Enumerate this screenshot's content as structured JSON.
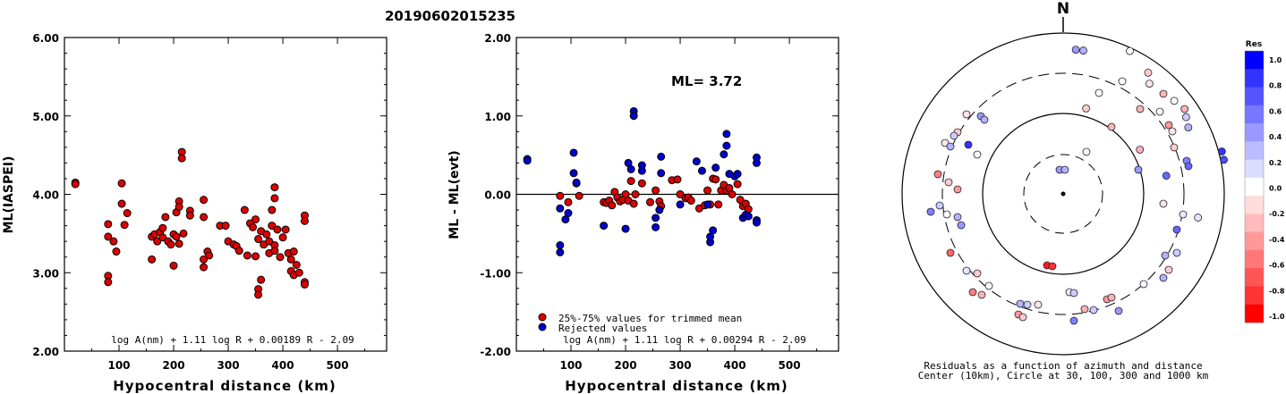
{
  "title": "20190602015235",
  "panel1": {
    "ylabel": "ML(IASPEI)",
    "xlabel": "Hypocentral distance (km)",
    "formula": "log A(nm) + 1.11 log R + 0.00189 R - 2.09",
    "yticks": [
      "2.00",
      "3.00",
      "4.00",
      "5.00",
      "6.00"
    ],
    "xticks": [
      "100",
      "200",
      "300",
      "400",
      "500"
    ]
  },
  "panel2": {
    "ylabel": "ML - ML(evt)",
    "xlabel": "Hypocentral distance (km)",
    "ml_label": "ML= 3.72",
    "legend": [
      "25%-75% values for trimmed mean",
      "Rejected values"
    ],
    "formula": "log A(nm) + 1.11 log R + 0.00294 R - 2.09",
    "yticks": [
      "-2.00",
      "-1.00",
      "0.00",
      "1.00",
      "2.00"
    ],
    "xticks": [
      "100",
      "200",
      "300",
      "400",
      "500"
    ]
  },
  "panel3": {
    "north": "N",
    "caption1": "Residuals as a function of azimuth and distance",
    "caption2": "Center (10km), Circle at 30, 100, 300 and 1000 km"
  },
  "colorbar": {
    "title": "Res",
    "labels": [
      "1.0",
      "0.8",
      "0.6",
      "0.4",
      "0.2",
      "0.0",
      "-0.2",
      "-0.4",
      "-0.6",
      "-0.8",
      "-1.0"
    ],
    "colors": [
      "#0000ff",
      "#3333ff",
      "#5555ff",
      "#7777ff",
      "#9999ff",
      "#bbbbff",
      "#dcdcff",
      "#ffffff",
      "#ffdcdc",
      "#ffbbbb",
      "#ff9999",
      "#ff7777",
      "#ff5555",
      "#ff3333",
      "#ff0000"
    ]
  },
  "colors": {
    "kept": "#dd0000",
    "rejected": "#0000cc"
  },
  "chart_data": [
    {
      "type": "scatter",
      "xlabel": "Hypocentral distance (km)",
      "ylabel": "ML(IASPEI)",
      "xlim": [
        0,
        590
      ],
      "ylim": [
        2.0,
        6.0
      ],
      "points": [
        [
          20,
          4.15
        ],
        [
          20,
          4.13
        ],
        [
          80,
          3.62
        ],
        [
          80,
          3.46
        ],
        [
          80,
          2.96
        ],
        [
          80,
          2.88
        ],
        [
          90,
          3.4
        ],
        [
          95,
          3.27
        ],
        [
          105,
          4.14
        ],
        [
          105,
          3.88
        ],
        [
          110,
          3.61
        ],
        [
          115,
          3.76
        ],
        [
          160,
          3.46
        ],
        [
          160,
          3.17
        ],
        [
          165,
          3.49
        ],
        [
          170,
          3.4
        ],
        [
          175,
          3.52
        ],
        [
          180,
          3.57
        ],
        [
          180,
          3.45
        ],
        [
          185,
          3.71
        ],
        [
          190,
          3.4
        ],
        [
          195,
          3.36
        ],
        [
          200,
          3.49
        ],
        [
          200,
          3.09
        ],
        [
          205,
          3.77
        ],
        [
          205,
          3.46
        ],
        [
          210,
          3.91
        ],
        [
          210,
          3.84
        ],
        [
          210,
          3.37
        ],
        [
          215,
          4.54
        ],
        [
          215,
          4.46
        ],
        [
          218,
          3.5
        ],
        [
          230,
          3.79
        ],
        [
          230,
          3.73
        ],
        [
          255,
          3.93
        ],
        [
          255,
          3.71
        ],
        [
          255,
          3.17
        ],
        [
          255,
          3.07
        ],
        [
          262,
          3.27
        ],
        [
          265,
          3.22
        ],
        [
          285,
          3.6
        ],
        [
          295,
          3.6
        ],
        [
          300,
          3.4
        ],
        [
          310,
          3.36
        ],
        [
          315,
          3.34
        ],
        [
          320,
          3.28
        ],
        [
          330,
          3.8
        ],
        [
          335,
          3.22
        ],
        [
          340,
          3.63
        ],
        [
          345,
          3.58
        ],
        [
          350,
          3.21
        ],
        [
          350,
          3.68
        ],
        [
          355,
          3.43
        ],
        [
          355,
          2.79
        ],
        [
          355,
          2.72
        ],
        [
          360,
          3.53
        ],
        [
          360,
          2.91
        ],
        [
          365,
          3.36
        ],
        [
          370,
          3.49
        ],
        [
          375,
          3.25
        ],
        [
          375,
          3.4
        ],
        [
          380,
          3.6
        ],
        [
          380,
          3.8
        ],
        [
          385,
          4.09
        ],
        [
          385,
          3.95
        ],
        [
          385,
          3.35
        ],
        [
          385,
          3.28
        ],
        [
          390,
          3.55
        ],
        [
          395,
          3.2
        ],
        [
          400,
          3.45
        ],
        [
          405,
          3.55
        ],
        [
          410,
          3.25
        ],
        [
          415,
          3.17
        ],
        [
          415,
          3.02
        ],
        [
          420,
          2.97
        ],
        [
          420,
          3.27
        ],
        [
          425,
          3.1
        ],
        [
          430,
          3.0
        ],
        [
          440,
          3.73
        ],
        [
          440,
          3.66
        ],
        [
          440,
          2.88
        ],
        [
          440,
          2.85
        ]
      ]
    },
    {
      "type": "scatter",
      "xlabel": "Hypocentral distance (km)",
      "ylabel": "ML - ML(evt)",
      "xlim": [
        0,
        590
      ],
      "ylim": [
        -2.0,
        2.0
      ],
      "ml": 3.72,
      "series": [
        {
          "name": "25%-75% values for trimmed mean",
          "points": [
            [
              80,
              -0.02
            ],
            [
              95,
              -0.1
            ],
            [
              110,
              0.14
            ],
            [
              115,
              -0.02
            ],
            [
              160,
              -0.1
            ],
            [
              165,
              -0.11
            ],
            [
              170,
              -0.08
            ],
            [
              175,
              -0.14
            ],
            [
              180,
              0.03
            ],
            [
              185,
              -0.04
            ],
            [
              190,
              -0.09
            ],
            [
              195,
              -0.07
            ],
            [
              200,
              0.0
            ],
            [
              205,
              -0.08
            ],
            [
              210,
              0.17
            ],
            [
              215,
              -0.12
            ],
            [
              218,
              0.0
            ],
            [
              230,
              0.14
            ],
            [
              245,
              -0.1
            ],
            [
              255,
              0.05
            ],
            [
              262,
              -0.09
            ],
            [
              265,
              -0.15
            ],
            [
              285,
              0.18
            ],
            [
              295,
              0.19
            ],
            [
              300,
              0.0
            ],
            [
              310,
              -0.05
            ],
            [
              315,
              -0.04
            ],
            [
              320,
              -0.08
            ],
            [
              335,
              -0.18
            ],
            [
              345,
              -0.14
            ],
            [
              350,
              0.05
            ],
            [
              355,
              -0.13
            ],
            [
              360,
              0.2
            ],
            [
              365,
              0.19
            ],
            [
              370,
              -0.13
            ],
            [
              375,
              0.05
            ],
            [
              380,
              0.12
            ],
            [
              385,
              0.05
            ],
            [
              390,
              0.08
            ],
            [
              395,
              0.0
            ],
            [
              405,
              0.13
            ],
            [
              410,
              -0.07
            ],
            [
              415,
              -0.15
            ],
            [
              420,
              -0.12
            ],
            [
              425,
              -0.19
            ]
          ]
        },
        {
          "name": "Rejected values",
          "points": [
            [
              20,
              0.45
            ],
            [
              20,
              0.43
            ],
            [
              80,
              -0.18
            ],
            [
              80,
              -0.65
            ],
            [
              80,
              -0.74
            ],
            [
              90,
              -0.32
            ],
            [
              95,
              -0.24
            ],
            [
              105,
              0.53
            ],
            [
              105,
              0.27
            ],
            [
              110,
              0.15
            ],
            [
              160,
              -0.4
            ],
            [
              200,
              -0.44
            ],
            [
              205,
              0.4
            ],
            [
              210,
              0.32
            ],
            [
              215,
              1.06
            ],
            [
              215,
              1.0
            ],
            [
              230,
              0.37
            ],
            [
              230,
              0.3
            ],
            [
              255,
              -0.42
            ],
            [
              255,
              -0.3
            ],
            [
              262,
              -0.2
            ],
            [
              265,
              0.48
            ],
            [
              265,
              0.27
            ],
            [
              300,
              -0.13
            ],
            [
              330,
              0.42
            ],
            [
              340,
              0.3
            ],
            [
              350,
              -0.13
            ],
            [
              355,
              -0.61
            ],
            [
              355,
              -0.54
            ],
            [
              360,
              -0.46
            ],
            [
              365,
              0.34
            ],
            [
              380,
              0.51
            ],
            [
              385,
              0.77
            ],
            [
              385,
              0.62
            ],
            [
              390,
              0.26
            ],
            [
              400,
              0.23
            ],
            [
              405,
              0.26
            ],
            [
              415,
              -0.3
            ],
            [
              420,
              -0.26
            ],
            [
              425,
              -0.28
            ],
            [
              440,
              0.47
            ],
            [
              440,
              0.4
            ],
            [
              440,
              -0.33
            ],
            [
              440,
              -0.36
            ]
          ]
        }
      ]
    },
    {
      "type": "scatter",
      "name": "residuals polar",
      "rings": [
        30,
        100,
        300,
        1000
      ],
      "points": [
        {
          "az": 5,
          "r": 0.9,
          "res": 0.4
        },
        {
          "az": 8,
          "r": 0.9,
          "res": 0.3
        },
        {
          "az": 25,
          "r": 0.98,
          "res": 0.0
        },
        {
          "az": 35,
          "r": 0.92,
          "res": -0.2
        },
        {
          "az": 38,
          "r": 0.87,
          "res": -0.1
        },
        {
          "az": 45,
          "r": 0.88,
          "res": -0.3
        },
        {
          "az": 50,
          "r": 0.9,
          "res": 0.0
        },
        {
          "az": 55,
          "r": 0.92,
          "res": -0.3
        },
        {
          "az": 58,
          "r": 0.9,
          "res": 0.2
        },
        {
          "az": 62,
          "r": 0.88,
          "res": 0.3
        },
        {
          "az": 75,
          "r": 1.02,
          "res": 0.8
        },
        {
          "az": 78,
          "r": 1.02,
          "res": 0.7
        },
        {
          "az": 60,
          "r": 0.55,
          "res": -0.3
        },
        {
          "az": 15,
          "r": 0.55,
          "res": -0.2
        },
        {
          "az": 80,
          "r": 0.65,
          "res": 0.6
        },
        {
          "az": 100,
          "r": 0.85,
          "res": 0.1
        }
      ]
    }
  ]
}
